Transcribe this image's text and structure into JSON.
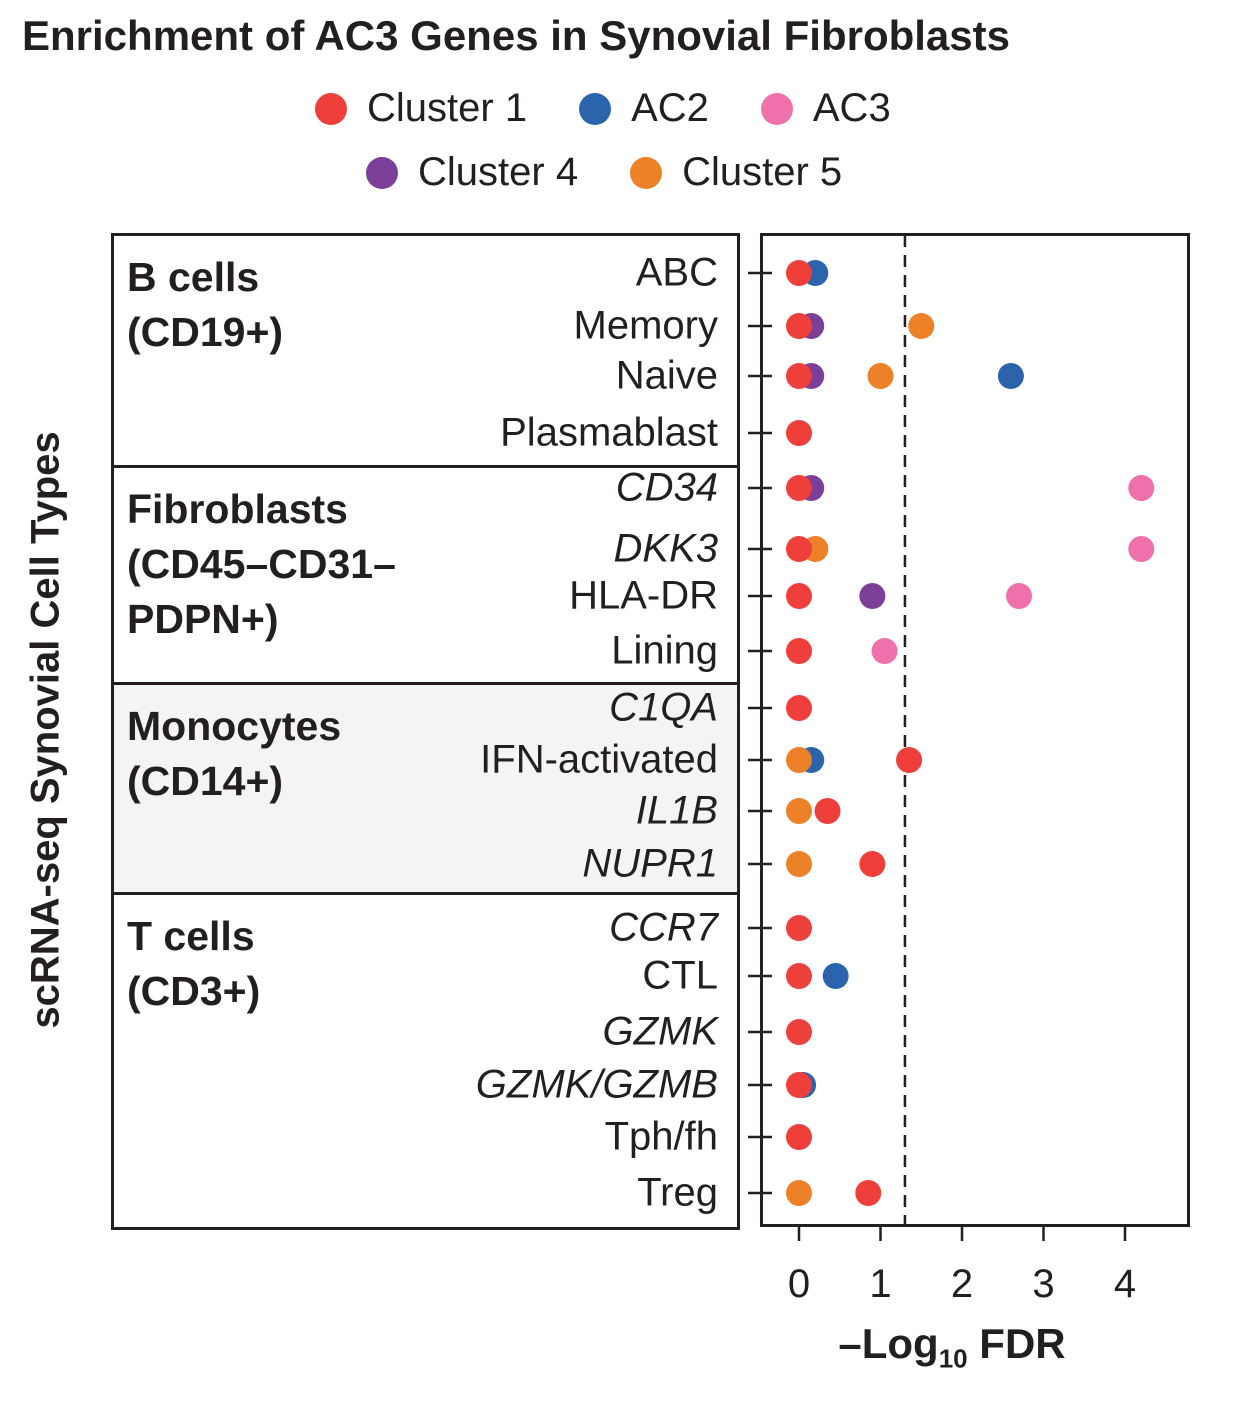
{
  "chart_data": {
    "type": "scatter",
    "title": "Enrichment of AC3 Genes in Synovial Fibroblasts",
    "xlabel_main": "–Log",
    "xlabel_sub": "10",
    "xlabel_tail": " FDR",
    "ylabel": "scRNA-seq Synovial Cell Types",
    "xlim": [
      -0.45,
      4.8
    ],
    "xticks": [
      0,
      1,
      2,
      3,
      4
    ],
    "threshold": 1.3,
    "legend": [
      {
        "name": "Cluster 1",
        "color": "#ee3f3a"
      },
      {
        "name": "AC2",
        "color": "#2c63ad"
      },
      {
        "name": "AC3",
        "color": "#ee71ab"
      },
      {
        "name": "Cluster 4",
        "color": "#7b3f98"
      },
      {
        "name": "Cluster 5",
        "color": "#ed8128"
      }
    ],
    "groups": [
      {
        "name": "B cells\n(CD19+)",
        "rows": [
          0,
          1,
          2,
          3
        ]
      },
      {
        "name": "Fibroblasts\n(CD45–CD31–\nPDPN+)",
        "rows": [
          4,
          5,
          6,
          7
        ]
      },
      {
        "name": "Monocytes\n(CD14+)",
        "rows": [
          8,
          9,
          10,
          11
        ]
      },
      {
        "name": "T cells\n(CD3+)",
        "rows": [
          12,
          13,
          14,
          15,
          16,
          17
        ]
      }
    ],
    "categories": [
      {
        "label": "ABC",
        "italic": false
      },
      {
        "label": "Memory",
        "italic": false
      },
      {
        "label": "Naive",
        "italic": false
      },
      {
        "label": "Plasmablast",
        "italic": false
      },
      {
        "label": "CD34",
        "italic": true
      },
      {
        "label": "DKK3",
        "italic": true
      },
      {
        "label": "HLA-DR",
        "italic": false
      },
      {
        "label": "Lining",
        "italic": false
      },
      {
        "label": "C1QA",
        "italic": true
      },
      {
        "label": "IFN-activated",
        "italic": false
      },
      {
        "label": "IL1B",
        "italic": true
      },
      {
        "label": "NUPR1",
        "italic": true
      },
      {
        "label": "CCR7",
        "italic": true
      },
      {
        "label": "CTL",
        "italic": false
      },
      {
        "label": "GZMK",
        "italic": true
      },
      {
        "label": "GZMK/GZMB",
        "italic": true
      },
      {
        "label": "Tph/fh",
        "italic": false
      },
      {
        "label": "Treg",
        "italic": false
      }
    ],
    "points": [
      {
        "row": 0,
        "series": "AC2",
        "x": 0.2
      },
      {
        "row": 0,
        "series": "Cluster 1",
        "x": 0.0
      },
      {
        "row": 1,
        "series": "Cluster 5",
        "x": 1.5
      },
      {
        "row": 1,
        "series": "Cluster 4",
        "x": 0.15
      },
      {
        "row": 1,
        "series": "Cluster 1",
        "x": 0.0
      },
      {
        "row": 2,
        "series": "AC2",
        "x": 2.6
      },
      {
        "row": 2,
        "series": "Cluster 5",
        "x": 1.0
      },
      {
        "row": 2,
        "series": "Cluster 4",
        "x": 0.15
      },
      {
        "row": 2,
        "series": "Cluster 1",
        "x": 0.0
      },
      {
        "row": 3,
        "series": "Cluster 1",
        "x": 0.0
      },
      {
        "row": 4,
        "series": "AC3",
        "x": 4.2
      },
      {
        "row": 4,
        "series": "Cluster 4",
        "x": 0.15
      },
      {
        "row": 4,
        "series": "Cluster 1",
        "x": 0.0
      },
      {
        "row": 5,
        "series": "AC3",
        "x": 4.2
      },
      {
        "row": 5,
        "series": "Cluster 5",
        "x": 0.2
      },
      {
        "row": 5,
        "series": "Cluster 1",
        "x": 0.0
      },
      {
        "row": 6,
        "series": "AC3",
        "x": 2.7
      },
      {
        "row": 6,
        "series": "Cluster 4",
        "x": 0.9
      },
      {
        "row": 6,
        "series": "Cluster 1",
        "x": 0.0
      },
      {
        "row": 7,
        "series": "AC3",
        "x": 1.05
      },
      {
        "row": 7,
        "series": "Cluster 1",
        "x": 0.0
      },
      {
        "row": 8,
        "series": "Cluster 1",
        "x": 0.0
      },
      {
        "row": 9,
        "series": "AC2",
        "x": 0.15
      },
      {
        "row": 9,
        "series": "Cluster 5",
        "x": 0.0
      },
      {
        "row": 9,
        "series": "Cluster 1",
        "x": 1.35
      },
      {
        "row": 10,
        "series": "Cluster 1",
        "x": 0.35
      },
      {
        "row": 10,
        "series": "Cluster 5",
        "x": 0.0
      },
      {
        "row": 11,
        "series": "Cluster 1",
        "x": 0.9
      },
      {
        "row": 11,
        "series": "Cluster 5",
        "x": 0.0
      },
      {
        "row": 12,
        "series": "Cluster 1",
        "x": 0.0
      },
      {
        "row": 13,
        "series": "AC2",
        "x": 0.45
      },
      {
        "row": 13,
        "series": "Cluster 1",
        "x": 0.0
      },
      {
        "row": 14,
        "series": "Cluster 1",
        "x": 0.0
      },
      {
        "row": 15,
        "series": "AC2",
        "x": 0.05
      },
      {
        "row": 15,
        "series": "Cluster 1",
        "x": 0.0
      },
      {
        "row": 16,
        "series": "Cluster 1",
        "x": 0.0
      },
      {
        "row": 17,
        "series": "Cluster 1",
        "x": 0.85
      },
      {
        "row": 17,
        "series": "Cluster 5",
        "x": 0.0
      }
    ]
  }
}
